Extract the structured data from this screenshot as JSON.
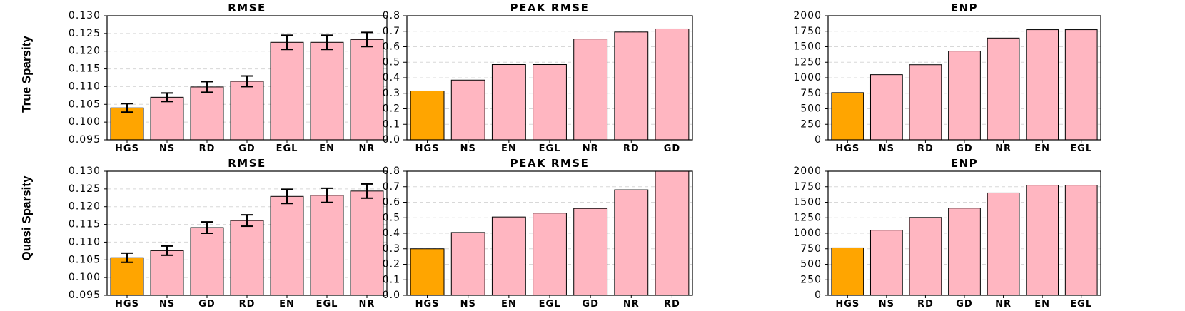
{
  "colors": {
    "highlight": "#FFA500",
    "default": "#FFB6C1"
  },
  "row_labels": [
    "True Sparsity",
    "Quasi Sparsity"
  ],
  "chart_data": [
    {
      "type": "bar",
      "title": "RMSE",
      "categories": [
        "HGS",
        "NS",
        "RD",
        "GD",
        "EGL",
        "EN",
        "NR"
      ],
      "values": [
        0.104,
        0.107,
        0.1099,
        0.1115,
        0.1225,
        0.1225,
        0.1233
      ],
      "errors": [
        0.0012,
        0.0012,
        0.0015,
        0.0015,
        0.002,
        0.002,
        0.002
      ],
      "ylim": [
        0.095,
        0.13
      ],
      "yticks": [
        "0.095",
        "0.100",
        "0.105",
        "0.110",
        "0.115",
        "0.120",
        "0.125",
        "0.130"
      ],
      "highlight_index": 0,
      "grid": true
    },
    {
      "type": "bar",
      "title": "PEAK RMSE",
      "categories": [
        "HGS",
        "NS",
        "EN",
        "EGL",
        "NR",
        "RD",
        "GD"
      ],
      "values": [
        0.315,
        0.385,
        0.485,
        0.485,
        0.65,
        0.695,
        0.715
      ],
      "ylim": [
        0.0,
        0.8
      ],
      "yticks": [
        "0.0",
        "0.1",
        "0.2",
        "0.3",
        "0.4",
        "0.5",
        "0.6",
        "0.7",
        "0.8"
      ],
      "highlight_index": 0,
      "grid": true
    },
    {
      "type": "bar",
      "title": "ENP",
      "categories": [
        "HGS",
        "NS",
        "RD",
        "GD",
        "NR",
        "EN",
        "EGL"
      ],
      "values": [
        760,
        1050,
        1210,
        1430,
        1640,
        1775,
        1775
      ],
      "ylim": [
        0,
        2000
      ],
      "yticks": [
        "0",
        "250",
        "500",
        "750",
        "1000",
        "1250",
        "1500",
        "1750",
        "2000"
      ],
      "highlight_index": 0,
      "grid": true
    },
    {
      "type": "bar",
      "title": "RMSE",
      "categories": [
        "HGS",
        "NS",
        "GD",
        "RD",
        "EN",
        "EGL",
        "NR"
      ],
      "values": [
        0.1056,
        0.1076,
        0.1141,
        0.1161,
        0.1229,
        0.1232,
        0.1244
      ],
      "errors": [
        0.0013,
        0.0013,
        0.0016,
        0.0016,
        0.002,
        0.002,
        0.002
      ],
      "ylim": [
        0.095,
        0.13
      ],
      "yticks": [
        "0.095",
        "0.100",
        "0.105",
        "0.110",
        "0.115",
        "0.120",
        "0.125",
        "0.130"
      ],
      "highlight_index": 0,
      "grid": true
    },
    {
      "type": "bar",
      "title": "PEAK RMSE",
      "categories": [
        "HGS",
        "NS",
        "EN",
        "EGL",
        "GD",
        "NR",
        "RD"
      ],
      "values": [
        0.3,
        0.405,
        0.505,
        0.53,
        0.56,
        0.68,
        0.8
      ],
      "ylim": [
        0.0,
        0.8
      ],
      "yticks": [
        "0.0",
        "0.1",
        "0.2",
        "0.3",
        "0.4",
        "0.5",
        "0.6",
        "0.7",
        "0.8"
      ],
      "highlight_index": 0,
      "grid": true
    },
    {
      "type": "bar",
      "title": "ENP",
      "categories": [
        "HGS",
        "NS",
        "RD",
        "GD",
        "NR",
        "EN",
        "EGL"
      ],
      "values": [
        765,
        1050,
        1255,
        1405,
        1650,
        1775,
        1775
      ],
      "ylim": [
        0,
        2000
      ],
      "yticks": [
        "0",
        "250",
        "500",
        "750",
        "1000",
        "1250",
        "1500",
        "1750",
        "2000"
      ],
      "highlight_index": 0,
      "grid": true
    }
  ]
}
